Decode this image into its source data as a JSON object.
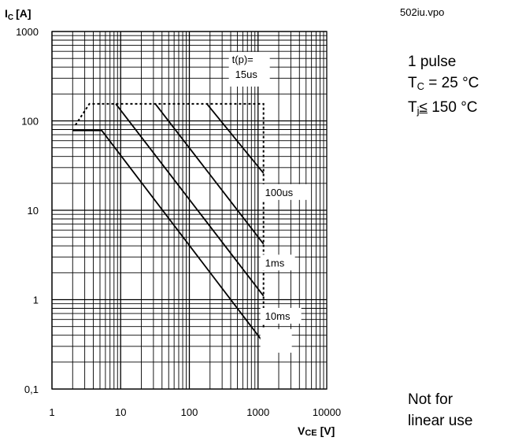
{
  "chart_data": {
    "type": "line",
    "title": "",
    "file_label": "502iu.vpo",
    "ylabel": "I",
    "ylabel_sub": "C",
    "ylabel_unit": "[A]",
    "xlabel": "V",
    "xlabel_sub": "CE",
    "xlabel_unit": "[V]",
    "xscale": "log",
    "yscale": "log",
    "xlim": [
      1,
      10000
    ],
    "ylim": [
      0.1,
      1000
    ],
    "grid": true,
    "x_ticks": [
      {
        "value": 1,
        "label": "1"
      },
      {
        "value": 10,
        "label": "10"
      },
      {
        "value": 100,
        "label": "100"
      },
      {
        "value": 1000,
        "label": "1000"
      },
      {
        "value": 10000,
        "label": "10000"
      }
    ],
    "y_ticks": [
      {
        "value": 0.1,
        "label": "0,1"
      },
      {
        "value": 1,
        "label": "1"
      },
      {
        "value": 10,
        "label": "10"
      },
      {
        "value": 100,
        "label": "100"
      },
      {
        "value": 1000,
        "label": "1000"
      }
    ],
    "series": [
      {
        "label": "t(p)=\n15us",
        "label_lines": [
          "t(p)=",
          "15us"
        ],
        "style": "dashed",
        "x": [
          2.2,
          3.5,
          1200,
          1200
        ],
        "y": [
          90,
          155,
          155,
          0.3
        ]
      },
      {
        "label": "100us",
        "style": "solid",
        "x": [
          180,
          1200
        ],
        "y": [
          155,
          26
        ]
      },
      {
        "label": "1ms",
        "style": "solid",
        "x": [
          32,
          1200
        ],
        "y": [
          155,
          4.2
        ]
      },
      {
        "label": "10ms",
        "style": "solid",
        "x": [
          8.5,
          1200
        ],
        "y": [
          155,
          1.1
        ]
      },
      {
        "label": "",
        "style": "solid",
        "x": [
          2,
          5.3,
          1200
        ],
        "y": [
          78,
          78,
          0.33
        ]
      }
    ]
  },
  "conditions": {
    "pulse": "1 pulse",
    "tc_main": "T",
    "tc_sub": "C",
    "tc_rest": " = 25 °C",
    "tj_main": "T",
    "tj_sub": "j",
    "tj_op": "≤",
    "tj_rest": " 150 °C"
  },
  "note": {
    "line1": "Not for",
    "line2": "linear use"
  }
}
